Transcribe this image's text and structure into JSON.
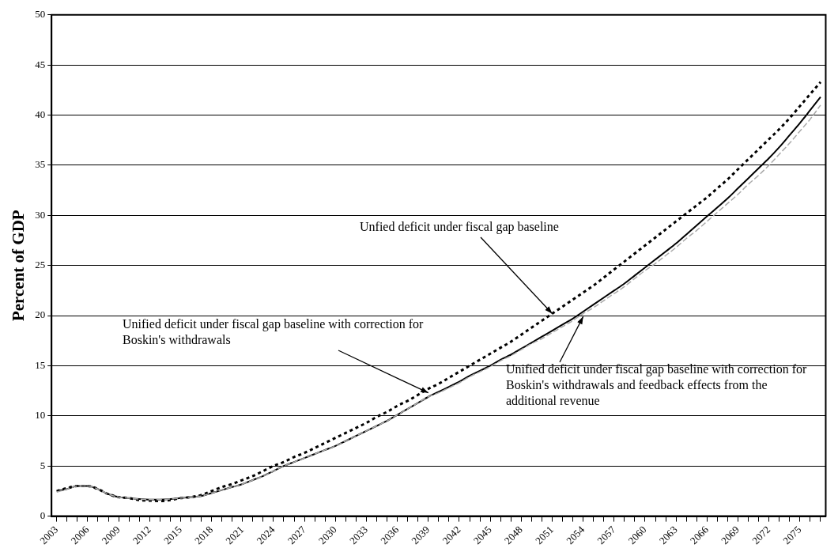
{
  "chart_data": {
    "type": "line",
    "ylabel": "Percent of GDP",
    "categories": [
      "2003",
      null,
      null,
      "2006",
      null,
      null,
      "2009",
      null,
      null,
      "2012",
      null,
      null,
      "2015",
      null,
      null,
      "2018",
      null,
      null,
      "2021",
      null,
      null,
      "2024",
      null,
      null,
      "2027",
      null,
      null,
      "2030",
      null,
      null,
      "2033",
      null,
      null,
      "2036",
      null,
      null,
      "2039",
      null,
      null,
      "2042",
      null,
      null,
      "2045",
      null,
      null,
      "2048",
      null,
      null,
      "2051",
      null,
      null,
      "2054",
      null,
      null,
      "2057",
      null,
      null,
      "2060",
      null,
      null,
      "2063",
      null,
      null,
      "2066",
      null,
      null,
      "2069",
      null,
      null,
      "2072",
      null,
      null,
      "2075",
      null,
      null
    ],
    "ylim": [
      0,
      50
    ],
    "yticks": [
      0,
      5,
      10,
      15,
      20,
      25,
      30,
      35,
      40,
      45,
      50
    ],
    "grid": "y",
    "marker": "none",
    "series": [
      {
        "color": "#aaaaaa",
        "line_style": "dashed",
        "values": [
          2.4,
          2.7,
          3.0,
          3.0,
          2.7,
          2.2,
          1.9,
          1.8,
          1.7,
          1.65,
          1.65,
          1.7,
          1.8,
          1.9,
          2.0,
          2.3,
          2.6,
          2.9,
          3.2,
          3.6,
          4.0,
          4.5,
          5.0,
          5.4,
          5.8,
          6.2,
          6.6,
          7.0,
          7.5,
          8.0,
          8.5,
          9.0,
          9.5,
          10.1,
          10.7,
          11.3,
          11.9,
          12.3,
          12.8,
          13.3,
          13.9,
          14.4,
          14.9,
          15.5,
          16.0,
          16.6,
          17.2,
          17.7,
          18.3,
          18.9,
          19.5,
          20.2,
          20.8,
          21.5,
          22.2,
          22.9,
          23.7,
          24.5,
          25.2,
          26.0,
          26.8,
          27.7,
          28.5,
          29.4,
          30.3,
          31.2,
          32.1,
          33.1,
          34.0,
          35.0,
          36.1,
          37.2,
          38.4,
          39.6,
          41.0
        ]
      },
      {
        "color": "#000000",
        "line_style": "solid",
        "values": [
          2.5,
          2.7,
          3.0,
          3.0,
          2.7,
          2.2,
          1.9,
          1.8,
          1.7,
          1.65,
          1.65,
          1.7,
          1.8,
          1.9,
          2.0,
          2.3,
          2.6,
          2.9,
          3.2,
          3.6,
          4.0,
          4.5,
          5.0,
          5.4,
          5.8,
          6.2,
          6.6,
          7.0,
          7.5,
          8.0,
          8.5,
          9.0,
          9.5,
          10.1,
          10.7,
          11.3,
          11.9,
          12.4,
          12.9,
          13.4,
          14.0,
          14.5,
          15.0,
          15.6,
          16.1,
          16.7,
          17.3,
          17.9,
          18.5,
          19.1,
          19.7,
          20.4,
          21.1,
          21.8,
          22.5,
          23.2,
          24.0,
          24.8,
          25.6,
          26.4,
          27.2,
          28.1,
          29.0,
          29.9,
          30.8,
          31.7,
          32.7,
          33.7,
          34.7,
          35.7,
          36.8,
          38.0,
          39.2,
          40.5,
          41.8
        ]
      },
      {
        "color": "#000000",
        "line_style": "dotted",
        "values": [
          2.5,
          2.8,
          3.0,
          3.0,
          2.7,
          2.2,
          1.9,
          1.8,
          1.6,
          1.55,
          1.5,
          1.6,
          1.8,
          1.9,
          2.1,
          2.5,
          2.9,
          3.2,
          3.6,
          4.0,
          4.5,
          5.0,
          5.4,
          5.9,
          6.3,
          6.8,
          7.3,
          7.8,
          8.3,
          8.8,
          9.3,
          9.9,
          10.4,
          11.0,
          11.5,
          12.1,
          12.7,
          13.2,
          13.8,
          14.4,
          15.0,
          15.6,
          16.2,
          16.8,
          17.4,
          18.1,
          18.8,
          19.5,
          20.2,
          20.9,
          21.6,
          22.3,
          23.0,
          23.8,
          24.6,
          25.4,
          26.2,
          27.0,
          27.8,
          28.6,
          29.4,
          30.2,
          31.0,
          31.8,
          32.7,
          33.6,
          34.6,
          35.6,
          36.6,
          37.6,
          38.6,
          39.7,
          40.9,
          42.1,
          43.3
        ]
      }
    ],
    "annotations": [
      {
        "text": "Unfied deficit under fiscal gap baseline",
        "x": "2051",
        "y": 20.2
      },
      {
        "text": "Unified deficit under fiscal gap baseline with correction for Boskin's withdrawals",
        "x": "2039",
        "y": 12.3
      },
      {
        "text": "Unified deficit under fiscal gap baseline with correction for Boskin's withdrawals and feedback effects from the additional revenue",
        "x": "2054",
        "y": 19.9
      }
    ]
  }
}
